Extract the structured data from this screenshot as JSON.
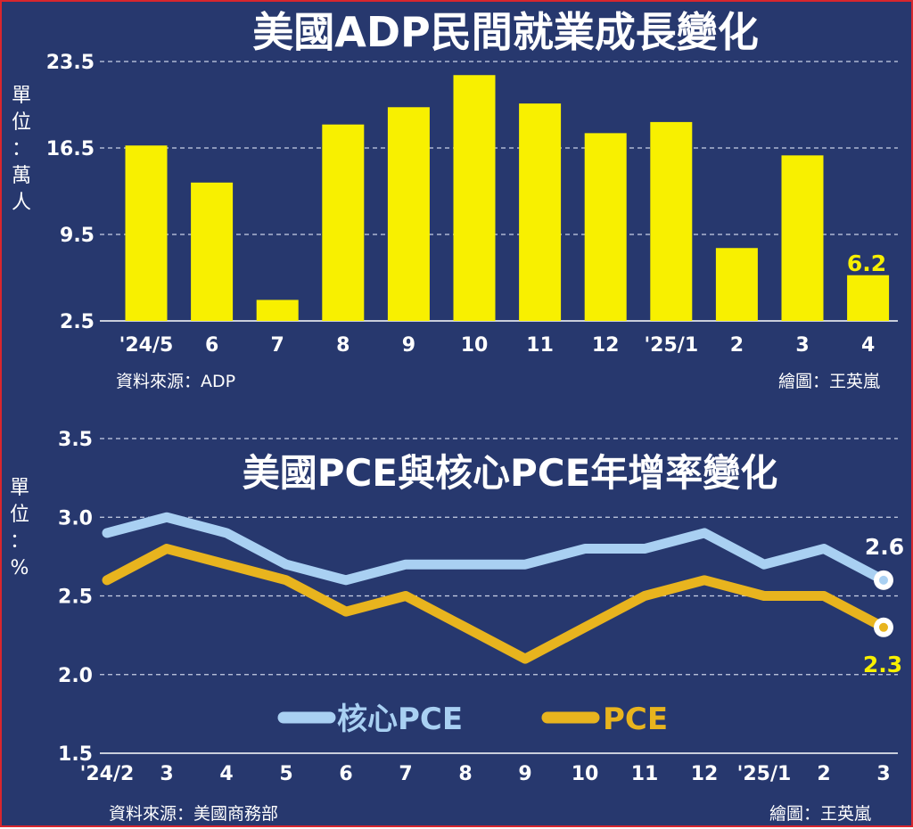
{
  "colors": {
    "background": "#27386e",
    "border": "#d8262e",
    "bar": "#f8f000",
    "core_pce": "#a9d0f2",
    "pce": "#e8b41e",
    "text": "#ffffff",
    "value_label_yellow": "#f8f000",
    "gridline": "#c9d0e6"
  },
  "top": {
    "title": "美國ADP民間就業成長變化",
    "unit_label": "單位：萬人",
    "source": "資料來源：ADP",
    "credit": "繪圖：王英嵐",
    "last_value_label": "6.2"
  },
  "bottom": {
    "title": "美國PCE與核心PCE年增率變化",
    "unit_label": "單位：%",
    "source": "資料來源：美國商務部",
    "credit": "繪圖：王英嵐",
    "end_label_core": "2.6",
    "end_label_pce": "2.3",
    "legend_core": "核心PCE",
    "legend_pce": "PCE"
  },
  "chart_data": [
    {
      "type": "bar",
      "title": "美國ADP民間就業成長變化",
      "ylabel": "單位：萬人",
      "categories": [
        "'24/5",
        "6",
        "7",
        "8",
        "9",
        "10",
        "11",
        "12",
        "'25/1",
        "2",
        "3",
        "4"
      ],
      "values": [
        16.7,
        13.7,
        4.2,
        18.4,
        19.8,
        22.4,
        20.1,
        17.7,
        18.6,
        8.4,
        15.9,
        6.2
      ],
      "ylim": [
        2.5,
        23.5
      ],
      "yticks": [
        "2.5",
        "9.5",
        "16.5",
        "23.5"
      ],
      "grid": true
    },
    {
      "type": "line",
      "title": "美國PCE與核心PCE年增率變化",
      "ylabel": "單位：%",
      "categories": [
        "'24/2",
        "3",
        "4",
        "5",
        "6",
        "7",
        "8",
        "9",
        "10",
        "11",
        "12",
        "'25/1",
        "2",
        "3"
      ],
      "series": [
        {
          "name": "核心PCE",
          "values": [
            2.9,
            3.0,
            2.9,
            2.7,
            2.6,
            2.7,
            2.7,
            2.7,
            2.8,
            2.8,
            2.9,
            2.7,
            2.8,
            2.6
          ]
        },
        {
          "name": "PCE",
          "values": [
            2.6,
            2.8,
            2.7,
            2.6,
            2.4,
            2.5,
            2.3,
            2.1,
            2.3,
            2.5,
            2.6,
            2.5,
            2.5,
            2.3
          ]
        }
      ],
      "ylim": [
        1.5,
        3.5
      ],
      "yticks": [
        "1.5",
        "2.0",
        "2.5",
        "3.0",
        "3.5"
      ],
      "grid": true,
      "legend": "bottom-center"
    }
  ]
}
